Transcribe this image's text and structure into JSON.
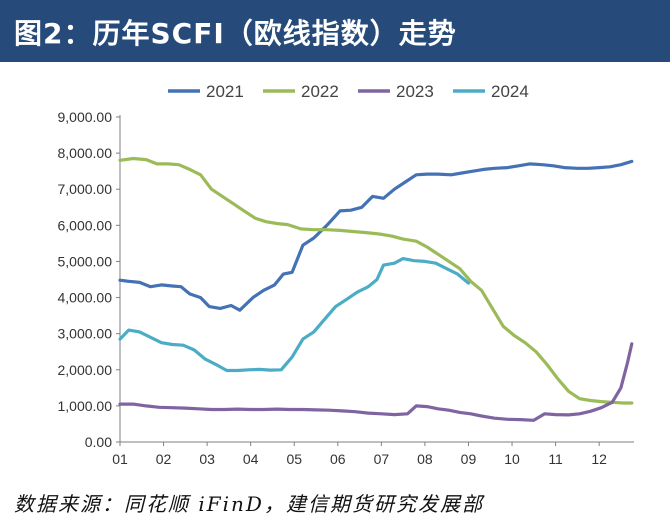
{
  "header": {
    "title": "图2：历年SCFI（欧线指数）走势"
  },
  "footer": {
    "source": "数据来源：同花顺 iFinD，建信期货研究发展部"
  },
  "colors": {
    "header_bg": "#264a7a",
    "s2021": "#4472b5",
    "s2022": "#9bbb59",
    "s2023": "#8064a2",
    "s2024": "#4bacc6"
  },
  "chart_data": {
    "type": "line",
    "title": "历年SCFI（欧线指数）走势",
    "xlabel": "",
    "ylabel": "",
    "x_range": [
      1,
      12.8
    ],
    "ylim": [
      0,
      9000
    ],
    "y_ticks": [
      0,
      1000,
      2000,
      3000,
      4000,
      5000,
      6000,
      7000,
      8000,
      9000
    ],
    "y_tick_labels": [
      "0.00",
      "1,000.00",
      "2,000.00",
      "3,000.00",
      "4,000.00",
      "5,000.00",
      "6,000.00",
      "7,000.00",
      "8,000.00",
      "9,000.00"
    ],
    "x_ticks": [
      1,
      2,
      3,
      4,
      5,
      6,
      7,
      8,
      9,
      10,
      11,
      12
    ],
    "x_tick_labels": [
      "01",
      "02",
      "03",
      "04",
      "05",
      "06",
      "07",
      "08",
      "09",
      "10",
      "11",
      "12"
    ],
    "legend_position": "top",
    "series": [
      {
        "name": "2021",
        "color": "#4472b5",
        "points": [
          [
            1.0,
            4480
          ],
          [
            1.2,
            4450
          ],
          [
            1.45,
            4420
          ],
          [
            1.7,
            4300
          ],
          [
            1.95,
            4350
          ],
          [
            2.2,
            4320
          ],
          [
            2.4,
            4300
          ],
          [
            2.6,
            4100
          ],
          [
            2.85,
            4000
          ],
          [
            3.05,
            3750
          ],
          [
            3.3,
            3700
          ],
          [
            3.55,
            3780
          ],
          [
            3.75,
            3650
          ],
          [
            4.05,
            4000
          ],
          [
            4.3,
            4200
          ],
          [
            4.55,
            4350
          ],
          [
            4.75,
            4650
          ],
          [
            4.95,
            4700
          ],
          [
            5.2,
            5450
          ],
          [
            5.45,
            5650
          ],
          [
            5.75,
            6000
          ],
          [
            6.05,
            6400
          ],
          [
            6.3,
            6420
          ],
          [
            6.55,
            6500
          ],
          [
            6.8,
            6800
          ],
          [
            7.05,
            6750
          ],
          [
            7.3,
            7000
          ],
          [
            7.55,
            7200
          ],
          [
            7.8,
            7400
          ],
          [
            8.05,
            7420
          ],
          [
            8.3,
            7420
          ],
          [
            8.6,
            7400
          ],
          [
            8.85,
            7450
          ],
          [
            9.1,
            7500
          ],
          [
            9.35,
            7550
          ],
          [
            9.6,
            7580
          ],
          [
            9.9,
            7600
          ],
          [
            10.15,
            7650
          ],
          [
            10.4,
            7700
          ],
          [
            10.7,
            7680
          ],
          [
            10.95,
            7650
          ],
          [
            11.2,
            7600
          ],
          [
            11.5,
            7580
          ],
          [
            11.75,
            7580
          ],
          [
            12.0,
            7600
          ],
          [
            12.25,
            7620
          ],
          [
            12.5,
            7680
          ],
          [
            12.75,
            7770
          ]
        ]
      },
      {
        "name": "2022",
        "color": "#9bbb59",
        "points": [
          [
            1.0,
            7800
          ],
          [
            1.3,
            7850
          ],
          [
            1.6,
            7820
          ],
          [
            1.85,
            7700
          ],
          [
            2.1,
            7700
          ],
          [
            2.35,
            7680
          ],
          [
            2.6,
            7550
          ],
          [
            2.85,
            7400
          ],
          [
            3.1,
            7000
          ],
          [
            3.35,
            6800
          ],
          [
            3.6,
            6600
          ],
          [
            3.85,
            6400
          ],
          [
            4.1,
            6200
          ],
          [
            4.35,
            6100
          ],
          [
            4.6,
            6050
          ],
          [
            4.85,
            6020
          ],
          [
            5.15,
            5900
          ],
          [
            5.45,
            5880
          ],
          [
            5.75,
            5880
          ],
          [
            6.05,
            5860
          ],
          [
            6.35,
            5830
          ],
          [
            6.65,
            5800
          ],
          [
            6.95,
            5760
          ],
          [
            7.25,
            5700
          ],
          [
            7.5,
            5620
          ],
          [
            7.8,
            5560
          ],
          [
            8.05,
            5400
          ],
          [
            8.3,
            5200
          ],
          [
            8.55,
            5000
          ],
          [
            8.8,
            4800
          ],
          [
            9.05,
            4450
          ],
          [
            9.3,
            4200
          ],
          [
            9.55,
            3700
          ],
          [
            9.8,
            3200
          ],
          [
            10.05,
            2950
          ],
          [
            10.3,
            2750
          ],
          [
            10.55,
            2500
          ],
          [
            10.8,
            2150
          ],
          [
            11.05,
            1750
          ],
          [
            11.3,
            1400
          ],
          [
            11.55,
            1200
          ],
          [
            11.8,
            1150
          ],
          [
            12.05,
            1120
          ],
          [
            12.3,
            1100
          ],
          [
            12.55,
            1080
          ],
          [
            12.75,
            1080
          ]
        ]
      },
      {
        "name": "2023",
        "color": "#8064a2",
        "points": [
          [
            1.0,
            1050
          ],
          [
            1.3,
            1050
          ],
          [
            1.6,
            1000
          ],
          [
            1.9,
            960
          ],
          [
            2.2,
            950
          ],
          [
            2.5,
            940
          ],
          [
            2.8,
            920
          ],
          [
            3.1,
            900
          ],
          [
            3.4,
            900
          ],
          [
            3.7,
            910
          ],
          [
            4.0,
            900
          ],
          [
            4.3,
            900
          ],
          [
            4.6,
            910
          ],
          [
            4.9,
            900
          ],
          [
            5.2,
            900
          ],
          [
            5.5,
            890
          ],
          [
            5.8,
            880
          ],
          [
            6.1,
            860
          ],
          [
            6.4,
            840
          ],
          [
            6.7,
            800
          ],
          [
            7.0,
            780
          ],
          [
            7.3,
            760
          ],
          [
            7.6,
            780
          ],
          [
            7.8,
            1000
          ],
          [
            8.05,
            980
          ],
          [
            8.3,
            920
          ],
          [
            8.55,
            880
          ],
          [
            8.8,
            820
          ],
          [
            9.05,
            780
          ],
          [
            9.3,
            720
          ],
          [
            9.6,
            660
          ],
          [
            9.9,
            630
          ],
          [
            10.2,
            620
          ],
          [
            10.5,
            600
          ],
          [
            10.75,
            780
          ],
          [
            11.0,
            760
          ],
          [
            11.3,
            750
          ],
          [
            11.55,
            780
          ],
          [
            11.8,
            850
          ],
          [
            12.05,
            950
          ],
          [
            12.3,
            1100
          ],
          [
            12.5,
            1500
          ],
          [
            12.65,
            2200
          ],
          [
            12.75,
            2720
          ]
        ]
      },
      {
        "name": "2024",
        "color": "#4bacc6",
        "points": [
          [
            1.0,
            2850
          ],
          [
            1.2,
            3100
          ],
          [
            1.45,
            3050
          ],
          [
            1.7,
            2900
          ],
          [
            1.95,
            2750
          ],
          [
            2.2,
            2700
          ],
          [
            2.45,
            2680
          ],
          [
            2.7,
            2550
          ],
          [
            2.95,
            2300
          ],
          [
            3.2,
            2150
          ],
          [
            3.45,
            1980
          ],
          [
            3.7,
            1980
          ],
          [
            3.95,
            2000
          ],
          [
            4.2,
            2010
          ],
          [
            4.45,
            1990
          ],
          [
            4.7,
            2000
          ],
          [
            4.95,
            2350
          ],
          [
            5.2,
            2850
          ],
          [
            5.45,
            3050
          ],
          [
            5.7,
            3400
          ],
          [
            5.95,
            3750
          ],
          [
            6.2,
            3950
          ],
          [
            6.45,
            4150
          ],
          [
            6.7,
            4300
          ],
          [
            6.9,
            4500
          ],
          [
            7.05,
            4900
          ],
          [
            7.3,
            4950
          ],
          [
            7.5,
            5080
          ],
          [
            7.75,
            5020
          ],
          [
            8.0,
            5000
          ],
          [
            8.25,
            4950
          ],
          [
            8.5,
            4800
          ],
          [
            8.75,
            4650
          ],
          [
            9.0,
            4400
          ]
        ]
      }
    ]
  }
}
